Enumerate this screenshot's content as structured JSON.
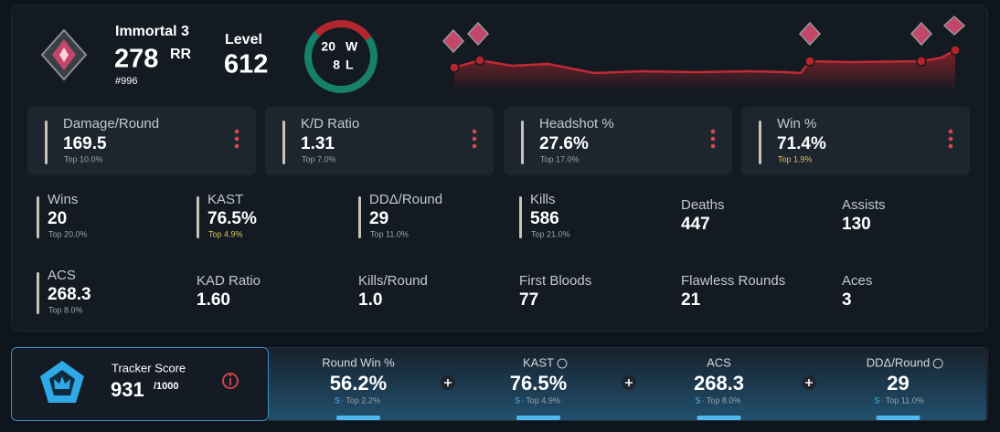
{
  "rank": {
    "name": "Immortal 3",
    "rr": "278",
    "rr_unit": "RR",
    "position": "#996"
  },
  "level": {
    "label": "Level",
    "value": "612"
  },
  "record": {
    "wins": 20,
    "wins_label": "W",
    "losses": 8,
    "losses_label": "L",
    "wins_color": "#17806a",
    "losses_color": "#b3262e"
  },
  "highlights": [
    {
      "name": "Damage/Round",
      "value": "169.5",
      "top": "Top 10.0%"
    },
    {
      "name": "K/D Ratio",
      "value": "1.31",
      "top": "Top 7.0%"
    },
    {
      "name": "Headshot %",
      "value": "27.6%",
      "top": "Top 17.0%"
    },
    {
      "name": "Win %",
      "value": "71.4%",
      "top": "Top 1.9%",
      "top_color": "#e2c15e"
    }
  ],
  "stats": [
    {
      "name": "Wins",
      "value": "20",
      "top": "Top 20.0%"
    },
    {
      "name": "KAST",
      "value": "76.5%",
      "top": "Top 4.9%",
      "top_color": "#e2c15e"
    },
    {
      "name": "DDΔ/Round",
      "value": "29",
      "top": "Top 11.0%"
    },
    {
      "name": "Kills",
      "value": "586",
      "top": "Top 21.0%"
    },
    {
      "name": "Deaths",
      "value": "447"
    },
    {
      "name": "Assists",
      "value": "130"
    },
    {
      "name": "ACS",
      "value": "268.3",
      "top": "Top 8.0%"
    },
    {
      "name": "KAD Ratio",
      "value": "1.60"
    },
    {
      "name": "Kills/Round",
      "value": "1.0"
    },
    {
      "name": "First Bloods",
      "value": "77"
    },
    {
      "name": "Flawless Rounds",
      "value": "21"
    },
    {
      "name": "Aces",
      "value": "3"
    }
  ],
  "tracker": {
    "label": "Tracker Score",
    "score": "931",
    "max": "/1000"
  },
  "metrics": [
    {
      "name": "Round Win %",
      "value": "56.2%",
      "grade": "S",
      "top": "· Top 2.2%"
    },
    {
      "name": "KAST",
      "value": "76.5%",
      "grade": "S",
      "top": "· Top 4.9%",
      "info": true
    },
    {
      "name": "ACS",
      "value": "268.3",
      "grade": "S",
      "top": "· Top 8.0%"
    },
    {
      "name": "DDΔ/Round",
      "value": "29",
      "grade": "S",
      "top": "· Top 11.0%",
      "info": true
    }
  ]
}
